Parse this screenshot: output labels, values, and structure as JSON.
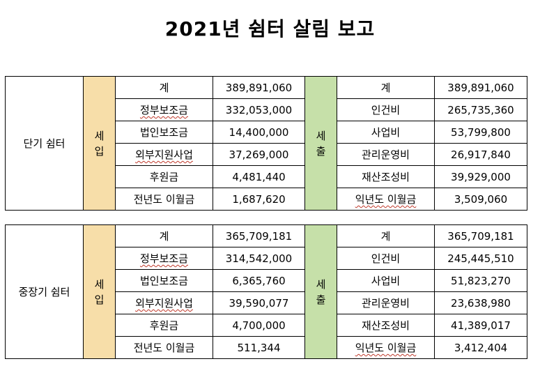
{
  "title": "2021년 쉼터 살림 보고",
  "tables": [
    {
      "name": "단기 쉼터",
      "income_label": "세\n입",
      "expense_label": "세\n출",
      "rows": [
        {
          "income_item": "계",
          "income_value": "389,891,060",
          "expense_item": "계",
          "expense_value": "389,891,060"
        },
        {
          "income_item": "정부보조금",
          "income_value": "332,053,000",
          "expense_item": "인건비",
          "expense_value": "265,735,360"
        },
        {
          "income_item": "법인보조금",
          "income_value": "14,400,000",
          "expense_item": "사업비",
          "expense_value": "53,799,800"
        },
        {
          "income_item": "외부지원사업",
          "income_value": "37,269,000",
          "expense_item": "관리운영비",
          "expense_value": "26,917,840"
        },
        {
          "income_item": "후원금",
          "income_value": "4,481,440",
          "expense_item": "재산조성비",
          "expense_value": "39,929,000"
        },
        {
          "income_item": "전년도 이월금",
          "income_value": "1,687,620",
          "expense_item": "익년도 이월금",
          "expense_value": "3,509,060"
        }
      ]
    },
    {
      "name": "중장기 쉼터",
      "income_label": "세\n입",
      "expense_label": "세\n출",
      "rows": [
        {
          "income_item": "계",
          "income_value": "365,709,181",
          "expense_item": "계",
          "expense_value": "365,709,181"
        },
        {
          "income_item": "정부보조금",
          "income_value": "314,542,000",
          "expense_item": "인건비",
          "expense_value": "245,445,510"
        },
        {
          "income_item": "법인보조금",
          "income_value": "6,365,760",
          "expense_item": "사업비",
          "expense_value": "51,823,270"
        },
        {
          "income_item": "외부지원사업",
          "income_value": "39,590,077",
          "expense_item": "관리운영비",
          "expense_value": "23,638,980"
        },
        {
          "income_item": "후원금",
          "income_value": "4,700,000",
          "expense_item": "재산조성비",
          "expense_value": "41,389,017"
        },
        {
          "income_item": "전년도 이월금",
          "income_value": "511,344",
          "expense_item": "익년도 이월금",
          "expense_value": "3,412,404"
        }
      ]
    }
  ],
  "colors": {
    "income_band": "#f7dea9",
    "expense_band": "#c6e0a9",
    "spellcheck_underline": "#c0392b"
  }
}
